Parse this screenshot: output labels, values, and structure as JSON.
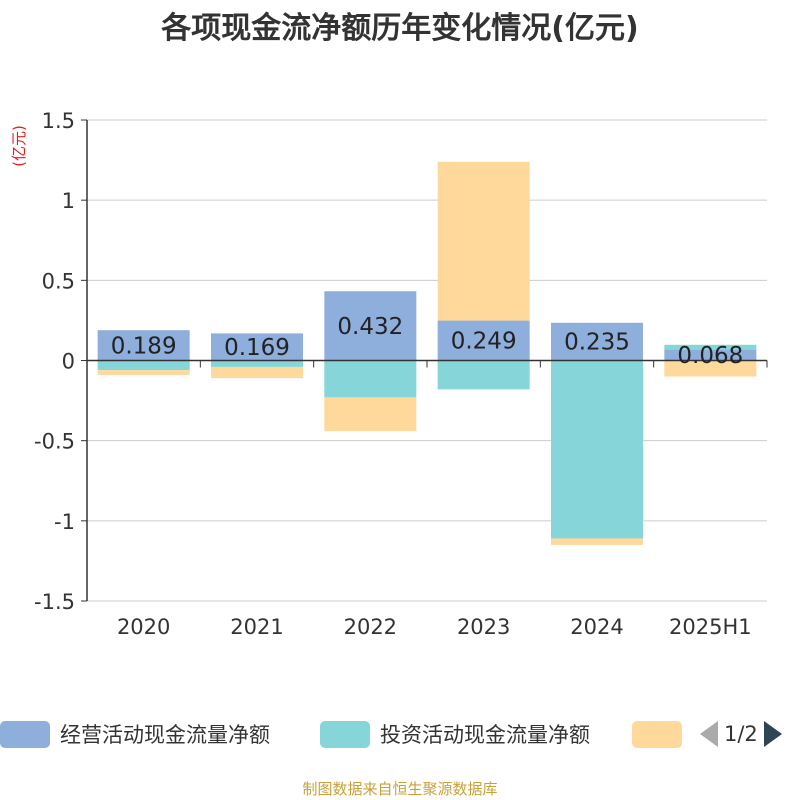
{
  "title": "各项现金流净额历年变化情况(亿元)",
  "unit_label": "(亿元)",
  "source": "制图数据来自恒生聚源数据库",
  "legend": {
    "items": [
      {
        "label": "经营活动现金流量净额",
        "color": "#8eaedb"
      },
      {
        "label": "投资活动现金流量净额",
        "color": "#86d5d8"
      },
      {
        "label": "",
        "color": "#ffd89b"
      }
    ],
    "page": "1/2"
  },
  "chart_data": {
    "type": "bar",
    "stacked": true,
    "categories": [
      "2020",
      "2021",
      "2022",
      "2023",
      "2024",
      "2025H1"
    ],
    "ylim": [
      -1.5,
      1.5
    ],
    "yticks": [
      1.5,
      1,
      0.5,
      0,
      -0.5,
      -1,
      -1.5
    ],
    "ytick_labels": [
      "1.5",
      "1",
      "0.5",
      "0",
      "-0.5",
      "-1",
      "-1.5"
    ],
    "grid": true,
    "series": [
      {
        "name": "经营活动现金流量净额",
        "color": "#8eaedb",
        "values": [
          0.189,
          0.169,
          0.432,
          0.249,
          0.235,
          0.068
        ],
        "labels": [
          "0.189",
          "0.169",
          "0.432",
          "0.249",
          "0.235",
          "0.068"
        ]
      },
      {
        "name": "投资活动现金流量净额",
        "color": "#86d5d8",
        "values": [
          -0.06,
          -0.04,
          -0.23,
          -0.18,
          -1.11,
          0.03
        ]
      },
      {
        "color": "#ffd89b",
        "values": [
          -0.03,
          -0.07,
          -0.21,
          0.99,
          -0.04,
          -0.1
        ]
      }
    ]
  }
}
